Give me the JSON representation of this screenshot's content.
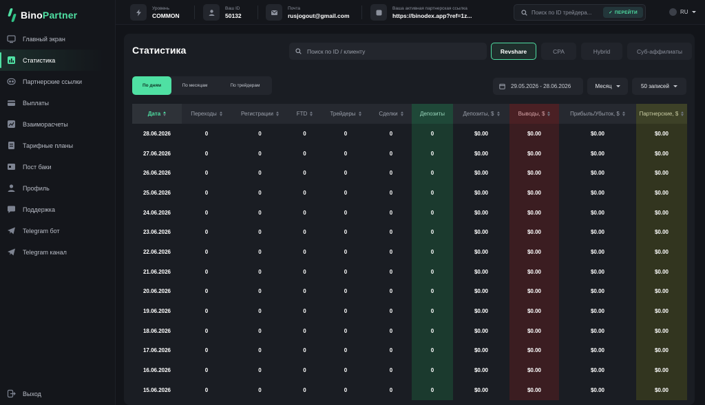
{
  "brand": {
    "name_part1": "Bino",
    "name_part2": "Partner",
    "accent": "#4fe0a3"
  },
  "sidebar": {
    "items": [
      {
        "label": "Главный экран",
        "icon": "home-icon"
      },
      {
        "label": "Статистика",
        "icon": "stats-icon",
        "active": true
      },
      {
        "label": "Партнерские ссылки",
        "icon": "link-icon"
      },
      {
        "label": "Выплаты",
        "icon": "payouts-icon"
      },
      {
        "label": "Взаиморасчеты",
        "icon": "settlements-icon"
      },
      {
        "label": "Тарифные планы",
        "icon": "tariffs-icon"
      },
      {
        "label": "Пост баки",
        "icon": "postback-icon"
      },
      {
        "label": "Профиль",
        "icon": "profile-icon"
      },
      {
        "label": "Поддержка",
        "icon": "support-icon"
      },
      {
        "label": "Telegram бот",
        "icon": "telegram-icon"
      },
      {
        "label": "Telegram канал",
        "icon": "telegram-icon"
      }
    ],
    "logout_label": "Выход"
  },
  "topbar": {
    "level_label": "Уровень",
    "level_value": "COMMON",
    "id_label": "Ваш ID",
    "id_value": "50132",
    "email_label": "Почта",
    "email_value": "rusjogout@gmail.com",
    "link_label": "Ваша активная партнерская ссылка",
    "link_value": "https://binodex.app?ref=1z...",
    "search_placeholder": "Поиск по ID трейдера...",
    "go_label": "ПЕРЕЙТИ",
    "lang": "RU"
  },
  "page": {
    "title": "Статистика",
    "search_placeholder": "Поиск по ID / клиенту",
    "mode_tabs": [
      "Revshare",
      "CPA",
      "Hybrid",
      "Суб-аффилиаты"
    ],
    "active_mode": "Revshare",
    "period_tabs": [
      "По дням",
      "По месяцам",
      "По трейдерам"
    ],
    "active_period": "По дням",
    "date_range": "29.05.2026 - 28.06.2026",
    "group_select": "Месяц",
    "records_select": "50 записей"
  },
  "table": {
    "columns": [
      "Дата",
      "Переходы",
      "Регистрации",
      "FTD",
      "Трейдеры",
      "Сделки",
      "Депозиты",
      "Депозиты, $",
      "Выводы, $",
      "Прибыль/Убыток, $",
      "Партнерские, $"
    ],
    "rows": [
      [
        "28.06.2026",
        "0",
        "0",
        "0",
        "0",
        "0",
        "0",
        "$0.00",
        "$0.00",
        "$0.00",
        "$0.00"
      ],
      [
        "27.06.2026",
        "0",
        "0",
        "0",
        "0",
        "0",
        "0",
        "$0.00",
        "$0.00",
        "$0.00",
        "$0.00"
      ],
      [
        "26.06.2026",
        "0",
        "0",
        "0",
        "0",
        "0",
        "0",
        "$0.00",
        "$0.00",
        "$0.00",
        "$0.00"
      ],
      [
        "25.06.2026",
        "0",
        "0",
        "0",
        "0",
        "0",
        "0",
        "$0.00",
        "$0.00",
        "$0.00",
        "$0.00"
      ],
      [
        "24.06.2026",
        "0",
        "0",
        "0",
        "0",
        "0",
        "0",
        "$0.00",
        "$0.00",
        "$0.00",
        "$0.00"
      ],
      [
        "23.06.2026",
        "0",
        "0",
        "0",
        "0",
        "0",
        "0",
        "$0.00",
        "$0.00",
        "$0.00",
        "$0.00"
      ],
      [
        "22.06.2026",
        "0",
        "0",
        "0",
        "0",
        "0",
        "0",
        "$0.00",
        "$0.00",
        "$0.00",
        "$0.00"
      ],
      [
        "21.06.2026",
        "0",
        "0",
        "0",
        "0",
        "0",
        "0",
        "$0.00",
        "$0.00",
        "$0.00",
        "$0.00"
      ],
      [
        "20.06.2026",
        "0",
        "0",
        "0",
        "0",
        "0",
        "0",
        "$0.00",
        "$0.00",
        "$0.00",
        "$0.00"
      ],
      [
        "19.06.2026",
        "0",
        "0",
        "0",
        "0",
        "0",
        "0",
        "$0.00",
        "$0.00",
        "$0.00",
        "$0.00"
      ],
      [
        "18.06.2026",
        "0",
        "0",
        "0",
        "0",
        "0",
        "0",
        "$0.00",
        "$0.00",
        "$0.00",
        "$0.00"
      ],
      [
        "17.06.2026",
        "0",
        "0",
        "0",
        "0",
        "0",
        "0",
        "$0.00",
        "$0.00",
        "$0.00",
        "$0.00"
      ],
      [
        "16.06.2026",
        "0",
        "0",
        "0",
        "0",
        "0",
        "0",
        "$0.00",
        "$0.00",
        "$0.00",
        "$0.00"
      ],
      [
        "15.06.2026",
        "0",
        "0",
        "0",
        "0",
        "0",
        "0",
        "$0.00",
        "$0.00",
        "$0.00",
        "$0.00"
      ]
    ]
  }
}
